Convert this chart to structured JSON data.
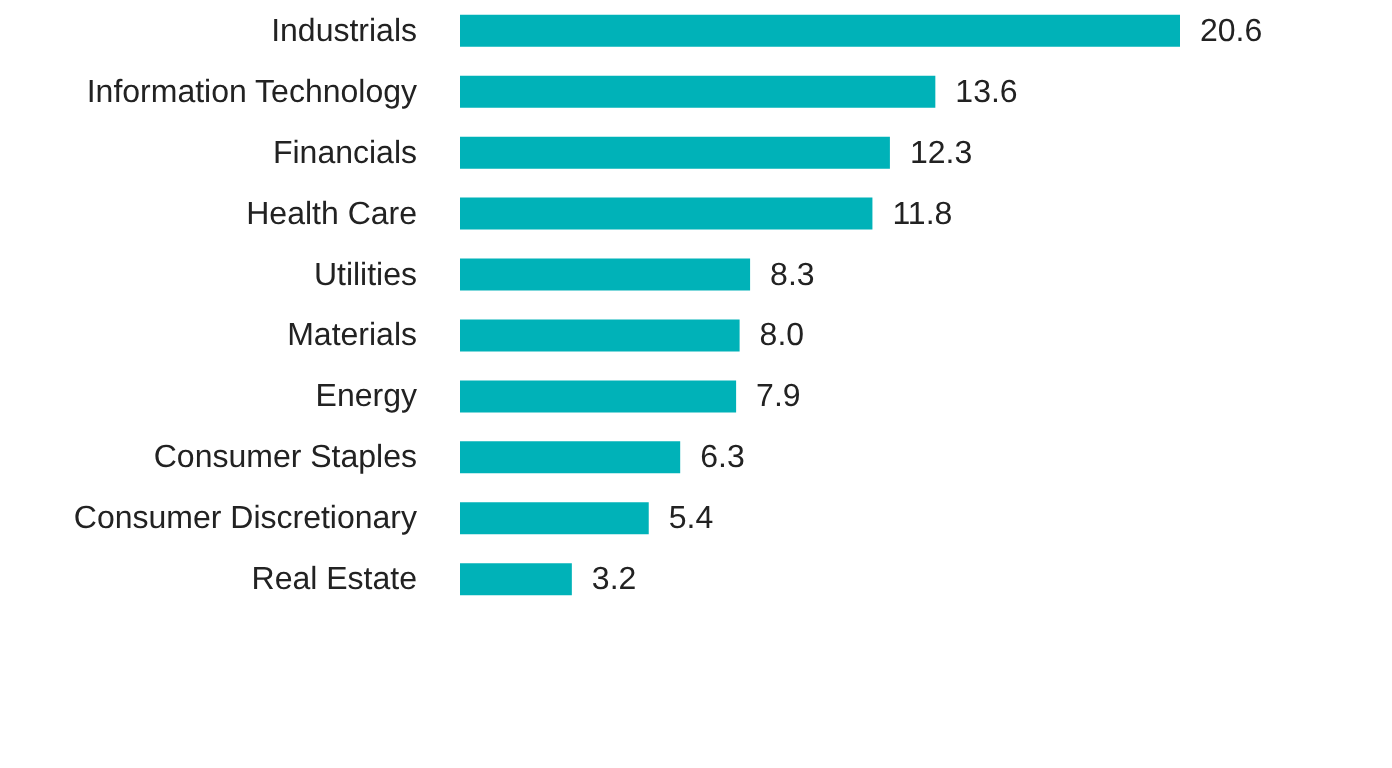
{
  "chart_data": {
    "type": "bar",
    "orientation": "horizontal",
    "categories": [
      "Industrials",
      "Information Technology",
      "Financials",
      "Health Care",
      "Utilities",
      "Materials",
      "Energy",
      "Consumer Staples",
      "Consumer Discretionary",
      "Real Estate"
    ],
    "values": [
      20.6,
      13.6,
      12.3,
      11.8,
      8.3,
      8.0,
      7.9,
      6.3,
      5.4,
      3.2
    ],
    "value_labels": [
      "20.6",
      "13.6",
      "12.3",
      "11.8",
      "8.3",
      "8.0",
      "7.9",
      "6.3",
      "5.4",
      "3.2"
    ],
    "color": "#00b2b8",
    "grid": false
  }
}
